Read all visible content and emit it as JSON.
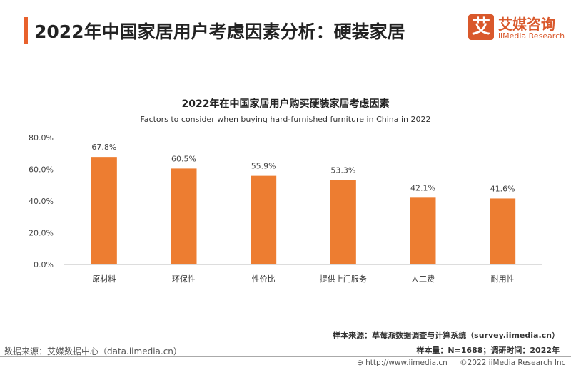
{
  "header": {
    "title": "2022年中国家居用户考虑因素分析：硬装家居",
    "logo_cn": "艾媒咨询",
    "logo_en": "iiMedia Research",
    "logo_glyph": "艾"
  },
  "chart_data": {
    "type": "bar",
    "title": "2022年在中国家居用户购买硬装家居考虑因素",
    "subtitle": "Factors to consider when buying hard-furnished furniture in China in 2022",
    "categories": [
      "原材料",
      "环保性",
      "性价比",
      "提供上门服务",
      "人工费",
      "耐用性"
    ],
    "values": [
      67.8,
      60.5,
      55.9,
      53.3,
      42.1,
      41.6
    ],
    "data_labels": [
      "67.8%",
      "60.5%",
      "55.9%",
      "53.3%",
      "42.1%",
      "41.6%"
    ],
    "yticks": [
      "0.0%",
      "20.0%",
      "40.0%",
      "60.0%",
      "80.0%"
    ],
    "ylim": [
      0,
      80
    ],
    "grid": false,
    "bar_color": "#ed7d31"
  },
  "footer": {
    "source": "数据来源：艾媒数据中心（data.iimedia.cn）",
    "sample_source": "样本来源：草莓派数据调查与计算系统（survey.iimedia.cn）",
    "sample_size": "样本量：N=1688；调研时间：2022年",
    "url": "http://www.iimedia.cn",
    "copyright": "©2022  iiMedia Research  Inc"
  }
}
